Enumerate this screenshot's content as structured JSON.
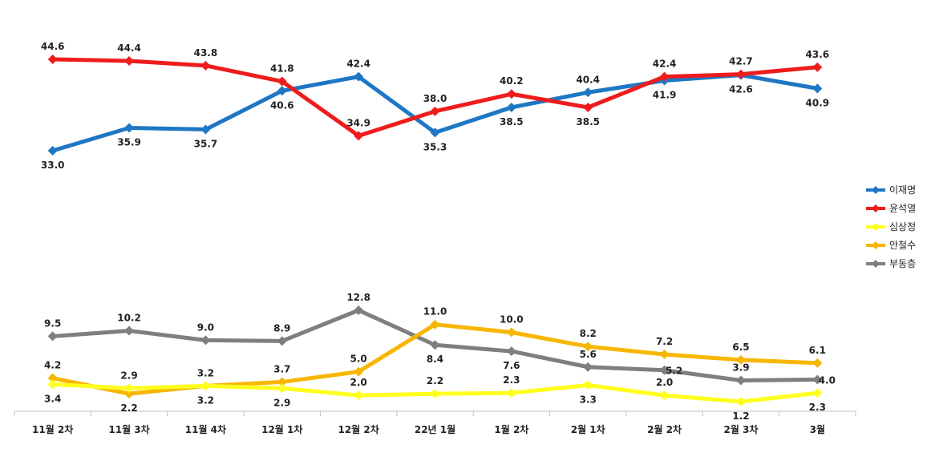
{
  "chart_data": {
    "type": "line",
    "title": "",
    "xlabel": "",
    "ylabel": "",
    "categories": [
      "11월 2차",
      "11월 3차",
      "11월 4차",
      "12월 1차",
      "12월 2차",
      "22년 1월",
      "1월 2차",
      "2월 1차",
      "2월 2차",
      "2월 3차",
      "3월"
    ],
    "legend_position": "right",
    "grid": false,
    "series": [
      {
        "name": "이재명",
        "color": "#1F77C4",
        "values": [
          33.0,
          35.9,
          35.7,
          40.6,
          42.4,
          35.3,
          38.5,
          40.4,
          41.9,
          42.6,
          40.9
        ]
      },
      {
        "name": "윤석열",
        "color": "#EE1C1C",
        "values": [
          44.6,
          44.4,
          43.8,
          41.8,
          34.9,
          38.0,
          40.2,
          38.5,
          42.4,
          42.7,
          43.6
        ]
      },
      {
        "name": "심상정",
        "color": "#FFFF1E",
        "values": [
          3.4,
          2.9,
          3.2,
          2.9,
          2.0,
          2.2,
          2.3,
          3.3,
          2.0,
          1.2,
          2.3
        ]
      },
      {
        "name": "안철수",
        "color": "#F7B600",
        "values": [
          4.2,
          2.2,
          3.2,
          3.7,
          5.0,
          11.0,
          10.0,
          8.2,
          7.2,
          6.5,
          6.1
        ]
      },
      {
        "name": "부동층",
        "color": "#7F7F7F",
        "values": [
          9.5,
          10.2,
          9.0,
          8.9,
          12.8,
          8.4,
          7.6,
          5.6,
          5.2,
          3.9,
          4.0
        ]
      }
    ]
  }
}
